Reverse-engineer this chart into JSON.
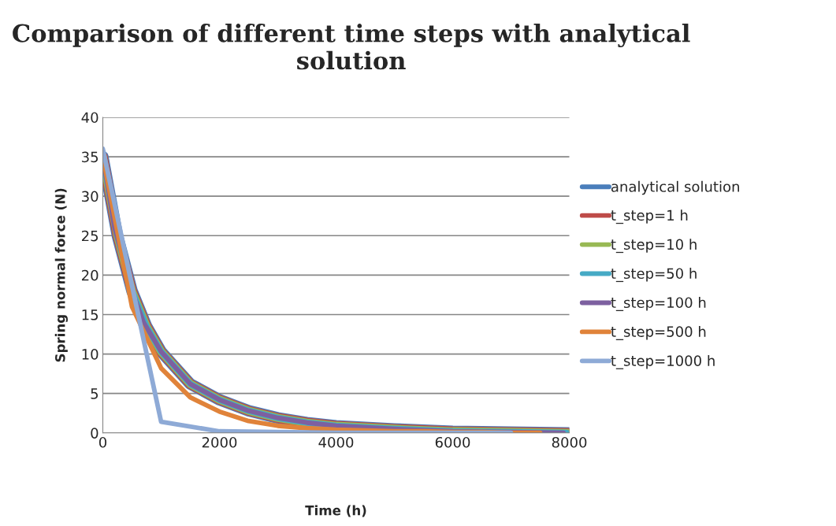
{
  "chart_data": {
    "type": "line",
    "title": "Comparison of different time steps with analytical solution",
    "xlabel": "Time (h)",
    "ylabel": "Spring normal force (N)",
    "xlim": [
      0,
      8000
    ],
    "xticks": [
      0,
      2000,
      4000,
      6000,
      8000
    ],
    "ylim": [
      0,
      40
    ],
    "yticks": [
      0,
      5,
      10,
      15,
      20,
      25,
      30,
      35,
      40
    ],
    "grid": "y",
    "legend": "right",
    "marker": "none",
    "line_style": "solid",
    "series": [
      {
        "name": "analytical solution",
        "color": "#4a7ebb",
        "x": [
          0,
          250,
          500,
          750,
          1000,
          1500,
          2000,
          2500,
          3000,
          3500,
          4000,
          5000,
          6000,
          7000,
          8000
        ],
        "values": [
          35,
          25,
          18,
          13.5,
          10.3,
          6.2,
          4.2,
          2.8,
          1.9,
          1.3,
          0.9,
          0.5,
          0.2,
          0.1,
          0
        ]
      },
      {
        "name": "t_step=1 h",
        "color": "#be4b48",
        "x": [
          0,
          250,
          500,
          750,
          1000,
          1500,
          2000,
          2500,
          3000,
          3500,
          4000,
          5000,
          6000,
          7000,
          8000
        ],
        "values": [
          35,
          25,
          18,
          13.5,
          10.3,
          6.2,
          4.2,
          2.8,
          1.9,
          1.3,
          0.9,
          0.5,
          0.2,
          0.1,
          0
        ]
      },
      {
        "name": "t_step=10 h",
        "color": "#98b954",
        "x": [
          0,
          250,
          500,
          750,
          1000,
          1500,
          2000,
          2500,
          3000,
          3500,
          4000,
          5000,
          6000,
          7000,
          8000
        ],
        "values": [
          35,
          25,
          18,
          13.5,
          10.3,
          6.2,
          4.2,
          2.8,
          1.9,
          1.3,
          0.9,
          0.5,
          0.2,
          0.1,
          0
        ]
      },
      {
        "name": "t_step=50 h",
        "color": "#46aac5",
        "x": [
          0,
          250,
          500,
          750,
          1000,
          1500,
          2000,
          2500,
          3000,
          3500,
          4000,
          5000,
          6000,
          7000,
          7950
        ],
        "values": [
          35,
          25,
          18,
          13.5,
          10.3,
          6.2,
          4.2,
          2.8,
          1.9,
          1.3,
          0.9,
          0.5,
          0.2,
          0.1,
          0
        ]
      },
      {
        "name": "t_step=100 h",
        "color": "#7d60a0",
        "x": [
          0,
          200,
          500,
          700,
          1000,
          1500,
          2000,
          2500,
          3000,
          3500,
          4000,
          5000,
          6000,
          7000,
          7900
        ],
        "values": [
          35,
          26,
          18,
          14,
          10.3,
          6.2,
          4.2,
          2.8,
          1.9,
          1.3,
          0.9,
          0.5,
          0.2,
          0.1,
          0
        ]
      },
      {
        "name": "t_step=500 h",
        "color": "#e0833a",
        "x": [
          0,
          500,
          1000,
          1500,
          2000,
          2500,
          3000,
          3500,
          4000,
          4500,
          5000,
          5500,
          6000,
          6500,
          7000,
          7500
        ],
        "values": [
          35,
          16,
          8.2,
          4.5,
          2.7,
          1.5,
          0.9,
          0.6,
          0.4,
          0.3,
          0.2,
          0.2,
          0.1,
          0.1,
          0,
          0
        ]
      },
      {
        "name": "t_step=1000 h",
        "color": "#8eaad6",
        "x": [
          0,
          1000,
          2000,
          3000,
          4000,
          5000,
          6000,
          7000
        ],
        "values": [
          36,
          1.4,
          0.2,
          0.1,
          0,
          0,
          0,
          0
        ]
      }
    ]
  }
}
